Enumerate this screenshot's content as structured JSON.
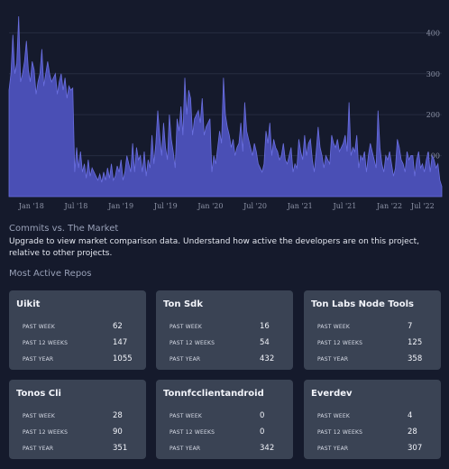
{
  "chart_data": {
    "type": "area",
    "color": "#4a4fb5",
    "ytick_labels": [
      "100",
      "200",
      "300",
      "400"
    ],
    "yticks": [
      100,
      200,
      300,
      400
    ],
    "ylim": [
      0,
      480
    ],
    "xtick_labels": [
      "Jan '18",
      "Jul '18",
      "Jan '19",
      "Jul '19",
      "Jan '20",
      "Jul '20",
      "Jan '21",
      "Jul '21",
      "Jan '22",
      "Jul '22"
    ],
    "xtick_positions": [
      3,
      9,
      15,
      21,
      27,
      33,
      39,
      45,
      51,
      57
    ],
    "xlim": [
      0,
      58
    ],
    "grid": "horizontal",
    "values": [
      260,
      300,
      395,
      300,
      325,
      440,
      280,
      300,
      330,
      380,
      310,
      280,
      330,
      310,
      250,
      280,
      300,
      360,
      270,
      300,
      330,
      300,
      280,
      290,
      300,
      250,
      280,
      300,
      260,
      290,
      240,
      270,
      260,
      265,
      60,
      120,
      70,
      110,
      60,
      80,
      45,
      90,
      50,
      70,
      60,
      50,
      40,
      55,
      35,
      60,
      40,
      70,
      45,
      80,
      40,
      50,
      75,
      60,
      90,
      40,
      60,
      100,
      80,
      60,
      130,
      60,
      120,
      90,
      100,
      60,
      110,
      50,
      90,
      70,
      150,
      80,
      130,
      210,
      150,
      100,
      180,
      120,
      90,
      200,
      140,
      110,
      70,
      190,
      160,
      220,
      150,
      290,
      200,
      260,
      240,
      150,
      190,
      200,
      210,
      180,
      240,
      150,
      170,
      180,
      190,
      60,
      100,
      80,
      120,
      160,
      130,
      290,
      200,
      170,
      150,
      120,
      140,
      100,
      120,
      130,
      180,
      110,
      230,
      160,
      140,
      120,
      100,
      130,
      110,
      80,
      70,
      60,
      80,
      160,
      130,
      180,
      100,
      140,
      120,
      110,
      90,
      100,
      130,
      90,
      80,
      100,
      120,
      60,
      80,
      70,
      140,
      110,
      90,
      150,
      100,
      130,
      140,
      90,
      60,
      110,
      170,
      120,
      100,
      70,
      100,
      90,
      80,
      150,
      130,
      120,
      140,
      110,
      120,
      130,
      150,
      110,
      230,
      100,
      120,
      110,
      150,
      70,
      100,
      90,
      110,
      60,
      100,
      130,
      110,
      90,
      70,
      210,
      120,
      80,
      60,
      100,
      90,
      110,
      80,
      50,
      70,
      140,
      120,
      90,
      80,
      60,
      110,
      90,
      100,
      100,
      50,
      90,
      110,
      70,
      80,
      60,
      90,
      110,
      60,
      100,
      90,
      70,
      80,
      40,
      25
    ]
  },
  "commits": {
    "title": "Commits vs. The Market",
    "description": "Upgrade to view market comparison data. Understand how active the developers are on this project, relative to other projects."
  },
  "repos": {
    "title": "Most Active Repos",
    "labels": {
      "week": "PAST WEEK",
      "weeks12": "PAST 12 WEEKS",
      "year": "PAST YEAR"
    },
    "items": [
      {
        "name": "Uikit",
        "week": "62",
        "weeks12": "147",
        "year": "1055"
      },
      {
        "name": "Ton Sdk",
        "week": "16",
        "weeks12": "54",
        "year": "432"
      },
      {
        "name": "Ton Labs Node Tools",
        "week": "7",
        "weeks12": "125",
        "year": "358"
      },
      {
        "name": "Tonos Cli",
        "week": "28",
        "weeks12": "90",
        "year": "351"
      },
      {
        "name": "Tonnfcclientandroid",
        "week": "0",
        "weeks12": "0",
        "year": "342"
      },
      {
        "name": "Everdev",
        "week": "4",
        "weeks12": "28",
        "year": "307"
      }
    ]
  }
}
